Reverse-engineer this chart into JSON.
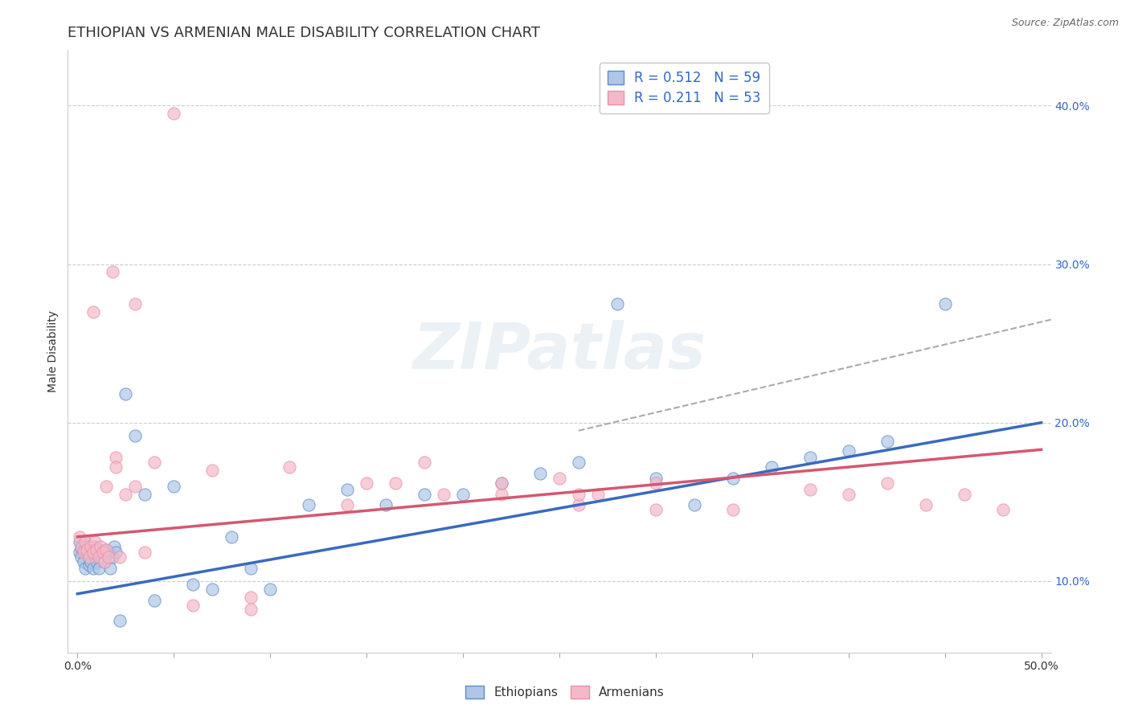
{
  "title": "ETHIOPIAN VS ARMENIAN MALE DISABILITY CORRELATION CHART",
  "source": "Source: ZipAtlas.com",
  "xlabel": "",
  "ylabel": "Male Disability",
  "xlim": [
    -0.005,
    0.505
  ],
  "ylim": [
    0.055,
    0.435
  ],
  "yticks": [
    0.1,
    0.2,
    0.3,
    0.4
  ],
  "yticklabels": [
    "10.0%",
    "20.0%",
    "30.0%",
    "40.0%"
  ],
  "xtick_positions": [
    0.0,
    0.05,
    0.1,
    0.15,
    0.2,
    0.25,
    0.3,
    0.35,
    0.4,
    0.45,
    0.5
  ],
  "legend_r1": "R = 0.512",
  "legend_n1": "N = 59",
  "legend_r2": "R = 0.211",
  "legend_n2": "N = 53",
  "ethiopians_color": "#aec6e8",
  "armenians_color": "#f5b8c8",
  "ethiopians_edge_color": "#5b8dc8",
  "armenians_edge_color": "#e890a8",
  "ethiopians_line_color": "#3a6abf",
  "armenians_line_color": "#d45870",
  "dash_line_color": "#aaaaaa",
  "background_color": "#ffffff",
  "grid_color": "#cccccc",
  "watermark": "ZIPatlas",
  "title_fontsize": 13,
  "axis_label_fontsize": 10,
  "tick_fontsize": 10,
  "legend_fontsize": 12,
  "eth_line_x0": 0.0,
  "eth_line_y0": 0.092,
  "eth_line_x1": 0.5,
  "eth_line_y1": 0.2,
  "arm_line_x0": 0.0,
  "arm_line_y0": 0.128,
  "arm_line_x1": 0.5,
  "arm_line_y1": 0.183,
  "dash_line_x0": 0.26,
  "dash_line_y0": 0.195,
  "dash_line_x1": 0.505,
  "dash_line_y1": 0.265,
  "ethiopians_x": [
    0.001,
    0.001,
    0.002,
    0.002,
    0.003,
    0.003,
    0.004,
    0.004,
    0.005,
    0.005,
    0.006,
    0.006,
    0.007,
    0.007,
    0.008,
    0.008,
    0.009,
    0.009,
    0.01,
    0.01,
    0.011,
    0.011,
    0.012,
    0.013,
    0.014,
    0.015,
    0.016,
    0.017,
    0.018,
    0.019,
    0.02,
    0.022,
    0.025,
    0.03,
    0.035,
    0.04,
    0.05,
    0.06,
    0.07,
    0.08,
    0.09,
    0.1,
    0.12,
    0.14,
    0.16,
    0.18,
    0.2,
    0.22,
    0.24,
    0.26,
    0.28,
    0.3,
    0.32,
    0.34,
    0.36,
    0.38,
    0.4,
    0.42,
    0.45
  ],
  "ethiopians_y": [
    0.125,
    0.118,
    0.121,
    0.115,
    0.12,
    0.112,
    0.125,
    0.108,
    0.122,
    0.118,
    0.115,
    0.11,
    0.12,
    0.112,
    0.118,
    0.108,
    0.122,
    0.115,
    0.118,
    0.112,
    0.12,
    0.108,
    0.115,
    0.118,
    0.112,
    0.12,
    0.118,
    0.108,
    0.115,
    0.122,
    0.118,
    0.075,
    0.218,
    0.192,
    0.155,
    0.088,
    0.16,
    0.098,
    0.095,
    0.128,
    0.108,
    0.095,
    0.148,
    0.158,
    0.148,
    0.155,
    0.155,
    0.162,
    0.168,
    0.175,
    0.275,
    0.165,
    0.148,
    0.165,
    0.172,
    0.178,
    0.182,
    0.188,
    0.275
  ],
  "armenians_x": [
    0.001,
    0.002,
    0.003,
    0.004,
    0.005,
    0.006,
    0.007,
    0.008,
    0.009,
    0.01,
    0.011,
    0.012,
    0.013,
    0.014,
    0.015,
    0.016,
    0.018,
    0.02,
    0.022,
    0.025,
    0.03,
    0.035,
    0.04,
    0.05,
    0.06,
    0.07,
    0.09,
    0.11,
    0.14,
    0.165,
    0.19,
    0.22,
    0.26,
    0.3,
    0.34,
    0.38,
    0.4,
    0.42,
    0.44,
    0.46,
    0.48,
    0.22,
    0.26,
    0.3,
    0.09,
    0.15,
    0.008,
    0.25,
    0.27,
    0.03,
    0.02,
    0.015,
    0.18
  ],
  "armenians_y": [
    0.128,
    0.122,
    0.118,
    0.125,
    0.12,
    0.115,
    0.122,
    0.118,
    0.125,
    0.12,
    0.115,
    0.122,
    0.118,
    0.112,
    0.12,
    0.115,
    0.295,
    0.178,
    0.115,
    0.155,
    0.275,
    0.118,
    0.175,
    0.395,
    0.085,
    0.17,
    0.082,
    0.172,
    0.148,
    0.162,
    0.155,
    0.155,
    0.148,
    0.162,
    0.145,
    0.158,
    0.155,
    0.162,
    0.148,
    0.155,
    0.145,
    0.162,
    0.155,
    0.145,
    0.09,
    0.162,
    0.27,
    0.165,
    0.155,
    0.16,
    0.172,
    0.16,
    0.175
  ]
}
